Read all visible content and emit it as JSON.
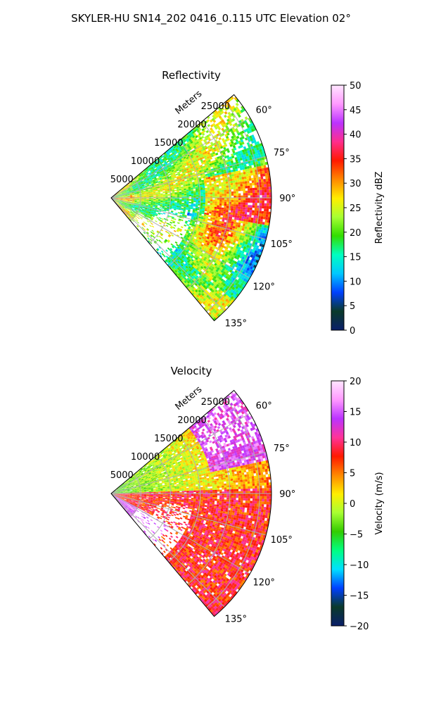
{
  "figure_title": "SKYLER-HU  SN14_202  0416_0.115 UTC Elevation 02°",
  "chart_data": [
    {
      "type": "heatmap",
      "projection": "polar-sector",
      "title": "Reflectivity",
      "radial_label": "Meters",
      "radial_ticks": [
        5000,
        10000,
        15000,
        20000,
        25000
      ],
      "radial_tick_labels": [
        "5000",
        "10000",
        "15000",
        "20000",
        "25000"
      ],
      "rlim": [
        0,
        27000
      ],
      "azimuth_range_deg": [
        50,
        140
      ],
      "azimuth_ticks": [
        60,
        75,
        90,
        105,
        120,
        135
      ],
      "azimuth_tick_labels": [
        "60°",
        "75°",
        "90°",
        "105°",
        "120°",
        "135°"
      ],
      "grid": true,
      "colorbar": {
        "label": "Reflectivity dBZ",
        "range": [
          0,
          50
        ],
        "ticks": [
          0,
          5,
          10,
          15,
          20,
          25,
          30,
          35,
          40,
          45,
          50
        ],
        "tick_labels": [
          "0",
          "5",
          "10",
          "15",
          "20",
          "25",
          "30",
          "35",
          "40",
          "45",
          "50"
        ]
      }
    },
    {
      "type": "heatmap",
      "projection": "polar-sector",
      "title": "Velocity",
      "radial_label": "Meters",
      "radial_ticks": [
        5000,
        10000,
        15000,
        20000,
        25000
      ],
      "radial_tick_labels": [
        "5000",
        "10000",
        "15000",
        "20000",
        "25000"
      ],
      "rlim": [
        0,
        27000
      ],
      "azimuth_range_deg": [
        50,
        140
      ],
      "azimuth_ticks": [
        60,
        75,
        90,
        105,
        120,
        135
      ],
      "azimuth_tick_labels": [
        "60°",
        "75°",
        "90°",
        "105°",
        "120°",
        "135°"
      ],
      "grid": true,
      "colorbar": {
        "label": "Velocity (m/s)",
        "range": [
          -20,
          20
        ],
        "ticks": [
          -20,
          -15,
          -10,
          -5,
          0,
          5,
          10,
          15,
          20
        ],
        "tick_labels": [
          "−20",
          "−15",
          "−10",
          "−5",
          "0",
          "5",
          "10",
          "15",
          "20"
        ]
      }
    }
  ],
  "colors": {
    "grid": "#b0b0b0",
    "refl_stops": [
      "#0a1f6a",
      "#0a3a2a",
      "#0040ff",
      "#00c8ff",
      "#00ffc0",
      "#33dd00",
      "#a8ff33",
      "#ffee00",
      "#ff8800",
      "#ff1a00",
      "#ff2e8c",
      "#bb33ff",
      "#ff99ff",
      "#ffe6ff"
    ],
    "vel_stops": [
      "#0a1f6a",
      "#0a3a2a",
      "#0040ff",
      "#00e0ff",
      "#00ff80",
      "#33cc00",
      "#a8ff33",
      "#ffee00",
      "#ff8800",
      "#ff1a00",
      "#ff3399",
      "#bb33ff",
      "#ff99ff",
      "#ffe6ff"
    ]
  }
}
